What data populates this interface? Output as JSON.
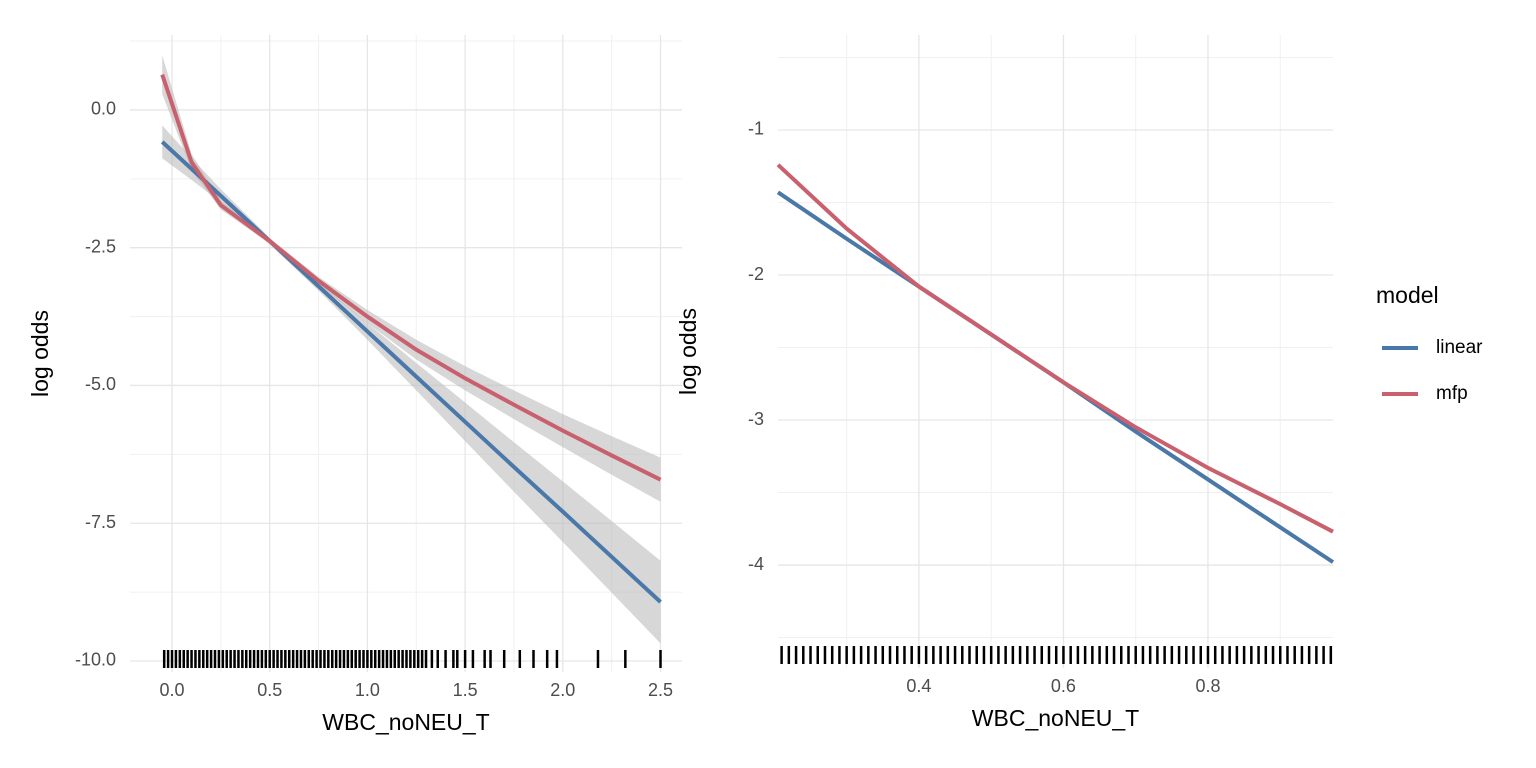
{
  "chart_data": [
    {
      "type": "line",
      "x_label": "WBC_noNEU_T",
      "y_label": "log odds",
      "x": [
        -0.05,
        0.1,
        0.25,
        0.5,
        0.75,
        1,
        1.25,
        1.5,
        1.75,
        2,
        2.25,
        2.5
      ],
      "series": [
        {
          "name": "linear",
          "color": "#4a78a8",
          "values": [
            -0.58,
            -1.07,
            -1.56,
            -2.38,
            -3.2,
            -4.02,
            -4.84,
            -5.66,
            -6.48,
            -7.29,
            -8.11,
            -8.93
          ],
          "lower": [
            -0.88,
            -1.27,
            -1.68,
            -2.44,
            -3.28,
            -4.17,
            -5.09,
            -6.01,
            -6.93,
            -7.84,
            -8.76,
            -9.68
          ],
          "upper": [
            -0.28,
            -0.87,
            -1.44,
            -2.32,
            -3.12,
            -3.87,
            -4.59,
            -5.31,
            -6.03,
            -6.74,
            -7.46,
            -8.18
          ]
        },
        {
          "name": "mfp",
          "color": "#c9606e",
          "values": [
            0.64,
            -0.95,
            -1.73,
            -2.38,
            -3.1,
            -3.75,
            -4.35,
            -4.87,
            -5.35,
            -5.82,
            -6.27,
            -6.71
          ],
          "lower": [
            0.29,
            -1.1,
            -1.81,
            -2.43,
            -3.17,
            -3.87,
            -4.53,
            -5.09,
            -5.61,
            -6.12,
            -6.62,
            -7.11
          ],
          "upper": [
            0.99,
            -0.8,
            -1.65,
            -2.33,
            -3.03,
            -3.63,
            -4.17,
            -4.65,
            -5.09,
            -5.52,
            -5.92,
            -6.31
          ]
        }
      ],
      "xlim": [
        -0.215,
        2.61
      ],
      "ylim": [
        -10.2,
        1.36
      ],
      "xticks": [
        {
          "value": 0,
          "label": "0.0"
        },
        0.5,
        {
          "value": 1,
          "label": "1.0"
        },
        1.5,
        {
          "value": 2,
          "label": "2.0"
        },
        2.5
      ],
      "yticks": [
        {
          "value": 0,
          "label": "0.0"
        },
        -2.5,
        {
          "value": -5,
          "label": "-5.0"
        },
        -7.5,
        {
          "value": -10,
          "label": "-10.0"
        }
      ],
      "grid": true,
      "rug": [
        -0.04,
        -0.02,
        0,
        0.02,
        0.04,
        0.06,
        0.08,
        0.1,
        0.12,
        0.14,
        0.16,
        0.18,
        0.2,
        0.22,
        0.24,
        0.26,
        0.28,
        0.3,
        0.32,
        0.34,
        0.36,
        0.38,
        0.4,
        0.42,
        0.44,
        0.46,
        0.48,
        0.5,
        0.52,
        0.54,
        0.56,
        0.58,
        0.6,
        0.62,
        0.64,
        0.66,
        0.68,
        0.7,
        0.72,
        0.74,
        0.76,
        0.78,
        0.8,
        0.82,
        0.84,
        0.86,
        0.88,
        0.9,
        0.92,
        0.94,
        0.96,
        0.98,
        1,
        1.02,
        1.04,
        1.06,
        1.08,
        1.1,
        1.12,
        1.14,
        1.16,
        1.18,
        1.2,
        1.22,
        1.24,
        1.26,
        1.28,
        1.3,
        1.33,
        1.36,
        1.4,
        1.44,
        1.46,
        1.5,
        1.54,
        1.6,
        1.63,
        1.7,
        1.78,
        1.85,
        1.92,
        1.97,
        2.18,
        2.32,
        2.5
      ]
    },
    {
      "type": "line",
      "x_label": "WBC_noNEU_T",
      "y_label": "log odds",
      "x": [
        0.205,
        0.3,
        0.4,
        0.5,
        0.6,
        0.7,
        0.8,
        0.9,
        0.973
      ],
      "series": [
        {
          "name": "linear",
          "color": "#4a78a8",
          "values": [
            -1.43,
            -1.75,
            -2.08,
            -2.41,
            -2.74,
            -3.08,
            -3.41,
            -3.74,
            -3.98
          ]
        },
        {
          "name": "mfp",
          "color": "#c9606e",
          "values": [
            -1.24,
            -1.68,
            -2.08,
            -2.41,
            -2.74,
            -3.05,
            -3.33,
            -3.58,
            -3.77
          ]
        }
      ],
      "xlim": [
        0.205,
        0.973
      ],
      "ylim": [
        -4.71,
        -0.345
      ],
      "xticks": [
        0.4,
        0.6,
        0.8
      ],
      "yticks": [
        -1,
        -2,
        -3,
        -4
      ],
      "grid": true,
      "rug": [
        0.21,
        0.22,
        0.23,
        0.24,
        0.25,
        0.26,
        0.27,
        0.28,
        0.29,
        0.3,
        0.31,
        0.32,
        0.33,
        0.34,
        0.35,
        0.36,
        0.37,
        0.38,
        0.39,
        0.4,
        0.41,
        0.42,
        0.43,
        0.44,
        0.45,
        0.46,
        0.47,
        0.48,
        0.49,
        0.5,
        0.51,
        0.52,
        0.53,
        0.54,
        0.55,
        0.56,
        0.57,
        0.58,
        0.59,
        0.6,
        0.61,
        0.62,
        0.63,
        0.64,
        0.65,
        0.66,
        0.67,
        0.68,
        0.69,
        0.7,
        0.71,
        0.72,
        0.73,
        0.74,
        0.75,
        0.76,
        0.77,
        0.78,
        0.79,
        0.8,
        0.81,
        0.82,
        0.83,
        0.84,
        0.85,
        0.86,
        0.87,
        0.88,
        0.89,
        0.9,
        0.91,
        0.92,
        0.93,
        0.94,
        0.95,
        0.96,
        0.97
      ]
    }
  ],
  "legend": {
    "title": "model",
    "position": "right"
  }
}
